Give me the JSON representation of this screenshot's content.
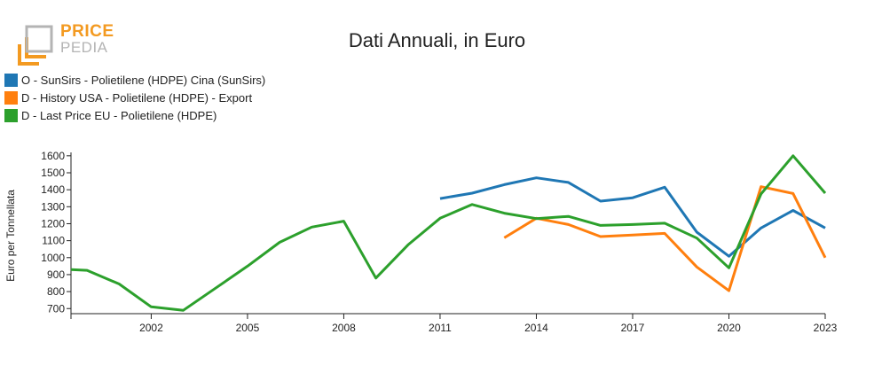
{
  "logo": {
    "brand_top": "PRICE",
    "brand_bottom": "PEDIA"
  },
  "chart_data": {
    "type": "line",
    "title": "Dati Annuali, in Euro",
    "xlabel": "",
    "ylabel": "Euro per Tonnellata",
    "xlim": [
      1999.5,
      2023
    ],
    "ylim": [
      670,
      1620
    ],
    "x_ticks": [
      2002,
      2005,
      2008,
      2011,
      2014,
      2017,
      2020,
      2023
    ],
    "y_ticks": [
      700,
      800,
      900,
      1000,
      1100,
      1200,
      1300,
      1400,
      1500,
      1600
    ],
    "grid": false,
    "legend_position": "top-left",
    "series": [
      {
        "name": "O - SunSirs - Polietilene (HDPE) Cina (SunSirs)",
        "color": "#1f77b4",
        "x": [
          2011,
          2012,
          2013,
          2014,
          2015,
          2016,
          2017,
          2018,
          2019,
          2020,
          2021,
          2022,
          2023
        ],
        "values": [
          1348,
          1380,
          1430,
          1470,
          1443,
          1333,
          1353,
          1415,
          1150,
          1008,
          1175,
          1278,
          1175
        ]
      },
      {
        "name": "D - History USA - Polietilene (HDPE) - Export",
        "color": "#ff7f0e",
        "x": [
          2013,
          2014,
          2015,
          2016,
          2017,
          2018,
          2019,
          2020,
          2021,
          2022,
          2023
        ],
        "values": [
          1117,
          1232,
          1195,
          1124,
          1133,
          1143,
          945,
          805,
          1418,
          1378,
          1000
        ]
      },
      {
        "name": "D - Last Price EU - Polietilene (HDPE)",
        "color": "#2ca02c",
        "x": [
          1999.5,
          2000,
          2001,
          2002,
          2003,
          2004,
          2005,
          2006,
          2007,
          2008,
          2009,
          2010,
          2011,
          2012,
          2013,
          2014,
          2015,
          2016,
          2017,
          2018,
          2019,
          2020,
          2021,
          2022,
          2023
        ],
        "values": [
          930,
          925,
          845,
          710,
          690,
          820,
          950,
          1090,
          1180,
          1215,
          880,
          1075,
          1232,
          1313,
          1262,
          1230,
          1243,
          1190,
          1195,
          1203,
          1115,
          940,
          1375,
          1600,
          1380
        ]
      }
    ]
  }
}
